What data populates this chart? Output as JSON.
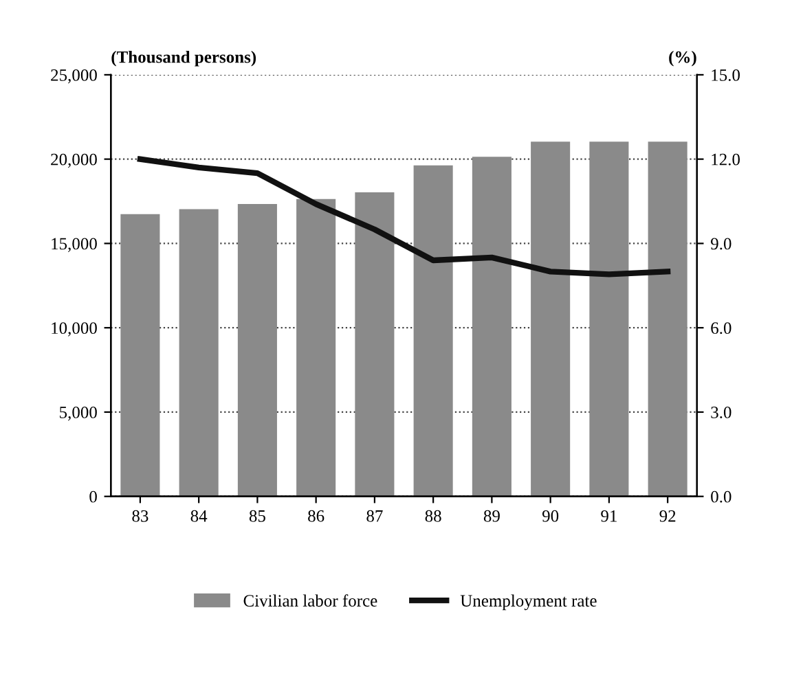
{
  "chart_data": {
    "type": "bar",
    "ylabel": "(Thousand persons)",
    "y2label": "(%)",
    "categories": [
      "83",
      "84",
      "85",
      "86",
      "87",
      "88",
      "89",
      "90",
      "91",
      "92"
    ],
    "series": [
      {
        "name": "Civilian labor force",
        "color": "#8a8a8a",
        "values": [
          16700,
          17000,
          17300,
          17600,
          18000,
          19600,
          20100,
          21000,
          21000,
          21000
        ]
      },
      {
        "name": "Unemployment rate",
        "type": "line",
        "axis": "y2",
        "color": "#111111",
        "values": [
          12.0,
          11.7,
          11.5,
          10.4,
          9.5,
          8.4,
          8.5,
          8.0,
          7.9,
          8.0
        ]
      }
    ],
    "ylim": [
      0,
      25000
    ],
    "yticks": [
      {
        "value": 0,
        "label": "0"
      },
      {
        "value": 5000,
        "label": "5,000"
      },
      {
        "value": 10000,
        "label": "10,000"
      },
      {
        "value": 15000,
        "label": "15,000"
      },
      {
        "value": 20000,
        "label": "20,000"
      },
      {
        "value": 25000,
        "label": "25,000"
      }
    ],
    "y2lim": [
      0,
      15
    ],
    "y2ticks": [
      {
        "value": 0,
        "label": "0.0"
      },
      {
        "value": 3,
        "label": "3.0"
      },
      {
        "value": 6,
        "label": "6.0"
      },
      {
        "value": 9,
        "label": "9.0"
      },
      {
        "value": 12,
        "label": "12.0"
      },
      {
        "value": 15,
        "label": "15.0"
      }
    ],
    "grid": "y",
    "legend": "bottom",
    "marker": "none",
    "line_style": "solid"
  }
}
